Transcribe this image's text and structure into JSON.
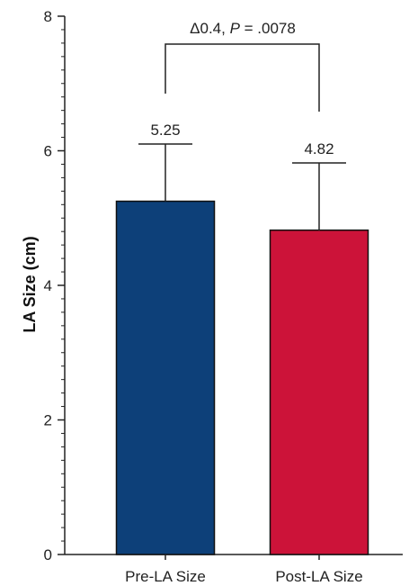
{
  "chart_data": {
    "type": "bar",
    "categories": [
      "Pre-LA Size",
      "Post-LA Size"
    ],
    "values": [
      5.25,
      4.82
    ],
    "error_upper": [
      6.1,
      5.82
    ],
    "colors": [
      "#0d4079",
      "#cc1339"
    ],
    "data_labels": [
      "5.25",
      "4.82"
    ],
    "ylabel": "LA Size (cm)",
    "ylim": [
      0,
      8
    ],
    "yticks": [
      "0",
      "2",
      "4",
      "6",
      "8"
    ],
    "comparison": {
      "prefix": "Δ0.4, ",
      "p_symbol": "P",
      "suffix": " = .0078"
    },
    "grid": false
  }
}
